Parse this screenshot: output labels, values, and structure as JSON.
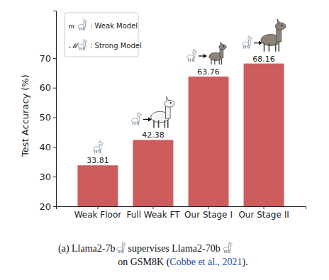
{
  "chart_data": {
    "type": "bar",
    "categories": [
      "Weak Floor",
      "Full Weak FT",
      "Our Stage I",
      "Our Stage II"
    ],
    "values": [
      33.81,
      42.38,
      63.76,
      68.16
    ],
    "color": "#cd5c5c",
    "ylabel": "Test Accuracy (%)",
    "ylim": [
      20,
      86
    ],
    "yticks": [
      20,
      30,
      40,
      50,
      60,
      70
    ],
    "data_labels": true,
    "grid": false,
    "annotations": [
      {
        "symbol": "m",
        "label": ": Weak Model"
      },
      {
        "symbol": "ℳ",
        "label": ": Strong Model"
      }
    ],
    "caption": {
      "line1": [
        "(a) Llama2-7b",
        "supervises Llama2-70b"
      ],
      "line2": [
        "on GSM8K (",
        "Cobbe et al., 2021",
        ")."
      ]
    }
  }
}
